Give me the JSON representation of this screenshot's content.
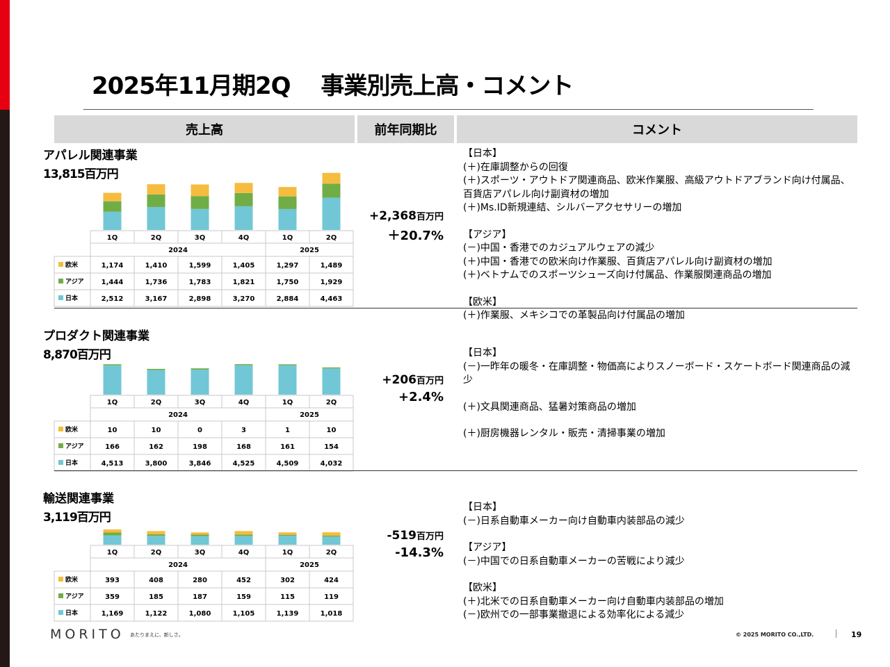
{
  "title": "2025年11月期2Q　 事業別売上高・コメント",
  "header": {
    "sales": "売上高",
    "yoy": "前年同期比",
    "comment": "コメント"
  },
  "colors": {
    "日本": "#71c7d5",
    "アジア": "#70ad47",
    "欧米": "#f5bc40",
    "accent": "#e60012"
  },
  "chart_data": [
    {
      "type": "bar",
      "stacked": true,
      "title": "アパレル関連事業",
      "categories": [
        "1Q",
        "2Q",
        "3Q",
        "4Q",
        "1Q",
        "2Q"
      ],
      "year_groups": [
        {
          "label": "2024",
          "span": 4
        },
        {
          "label": "2025",
          "span": 2
        }
      ],
      "series": [
        {
          "name": "欧米",
          "values": [
            1174,
            1410,
            1599,
            1405,
            1297,
            1489
          ]
        },
        {
          "name": "アジア",
          "values": [
            1444,
            1736,
            1783,
            1821,
            1750,
            1929
          ]
        },
        {
          "name": "日本",
          "values": [
            2512,
            3167,
            2898,
            3270,
            2884,
            4463
          ]
        }
      ],
      "table": [
        [
          "1,174",
          "1,410",
          "1,599",
          "1,405",
          "1,297",
          "1,489"
        ],
        [
          "1,444",
          "1,736",
          "1,783",
          "1,821",
          "1,750",
          "1,929"
        ],
        [
          "2,512",
          "3,167",
          "2,898",
          "3,270",
          "2,884",
          "4,463"
        ]
      ]
    },
    {
      "type": "bar",
      "stacked": true,
      "title": "プロダクト関連事業",
      "categories": [
        "1Q",
        "2Q",
        "3Q",
        "4Q",
        "1Q",
        "2Q"
      ],
      "year_groups": [
        {
          "label": "2024",
          "span": 4
        },
        {
          "label": "2025",
          "span": 2
        }
      ],
      "series": [
        {
          "name": "欧米",
          "values": [
            10,
            10,
            0,
            3,
            1,
            10
          ]
        },
        {
          "name": "アジア",
          "values": [
            166,
            162,
            198,
            168,
            161,
            154
          ]
        },
        {
          "name": "日本",
          "values": [
            4513,
            3800,
            3846,
            4525,
            4509,
            4032
          ]
        }
      ],
      "table": [
        [
          "10",
          "10",
          "0",
          "3",
          "1",
          "10"
        ],
        [
          "166",
          "162",
          "198",
          "168",
          "161",
          "154"
        ],
        [
          "4,513",
          "3,800",
          "3,846",
          "4,525",
          "4,509",
          "4,032"
        ]
      ]
    },
    {
      "type": "bar",
      "stacked": true,
      "title": "輸送関連事業",
      "categories": [
        "1Q",
        "2Q",
        "3Q",
        "4Q",
        "1Q",
        "2Q"
      ],
      "year_groups": [
        {
          "label": "2024",
          "span": 4
        },
        {
          "label": "2025",
          "span": 2
        }
      ],
      "series": [
        {
          "name": "欧米",
          "values": [
            393,
            408,
            280,
            452,
            302,
            424
          ]
        },
        {
          "name": "アジア",
          "values": [
            359,
            185,
            187,
            159,
            115,
            119
          ]
        },
        {
          "name": "日本",
          "values": [
            1169,
            1122,
            1080,
            1105,
            1139,
            1018
          ]
        }
      ],
      "table": [
        [
          "393",
          "408",
          "280",
          "452",
          "302",
          "424"
        ],
        [
          "359",
          "185",
          "187",
          "159",
          "115",
          "119"
        ],
        [
          "1,169",
          "1,122",
          "1,080",
          "1,105",
          "1,139",
          "1,018"
        ]
      ]
    }
  ],
  "segments": [
    {
      "name": "アパレル関連事業",
      "total": "13,815百万円",
      "yoy_amount": "+2,368",
      "yoy_unit": "百万円",
      "yoy_pct": "＋20.7%",
      "comments": [
        "【日本】",
        "(＋)在庫調整からの回復",
        "(＋)スポーツ・アウトドア関連商品、欧米作業服、高級アウトドアブランド向け付属品、百貨店アパレル向け副資材の増加",
        "(＋)Ms.ID新規連結、シルバーアクセサリーの増加",
        "",
        "【アジア】",
        "(－)中国・香港でのカジュアルウェアの減少",
        "(＋)中国・香港での欧米向け作業服、百貨店アパレル向け副資材の増加",
        "(＋)ベトナムでのスポーツシューズ向け付属品、作業服関連商品の増加",
        "",
        "【欧米】",
        "(＋)作業服、メキシコでの革製品向け付属品の増加"
      ]
    },
    {
      "name": "プロダクト関連事業",
      "total": "8,870百万円",
      "yoy_amount": "+206",
      "yoy_unit": "百万円",
      "yoy_pct": "+2.4%",
      "comments": [
        "【日本】",
        "(－)一昨年の暖冬・在庫調整・物価高によりスノーボード・スケートボード関連商品の減少",
        "",
        "(＋)文具関連商品、猛暑対策商品の増加",
        "",
        "(＋)厨房機器レンタル・販売・清掃事業の増加"
      ]
    },
    {
      "name": "輸送関連事業",
      "total": "3,119百万円",
      "yoy_amount": "-519",
      "yoy_unit": "百万円",
      "yoy_pct": "-14.3%",
      "comments": [
        "【日本】",
        "(－)日系自動車メーカー向け自動車内装部品の減少",
        "",
        "【アジア】",
        "(－)中国での日系自動車メーカーの苦戦により減少",
        "",
        "【欧米】",
        "(＋)北米での日系自動車メーカー向け自動車内装部品の増加",
        "(－)欧州での一部事業撤退による効率化による減少"
      ]
    }
  ],
  "footer": {
    "logo": "MORITO",
    "tagline": "あたりまえに、新しさ。",
    "copyright": "© 2025 MORITO CO.,LTD.",
    "page": "19"
  }
}
